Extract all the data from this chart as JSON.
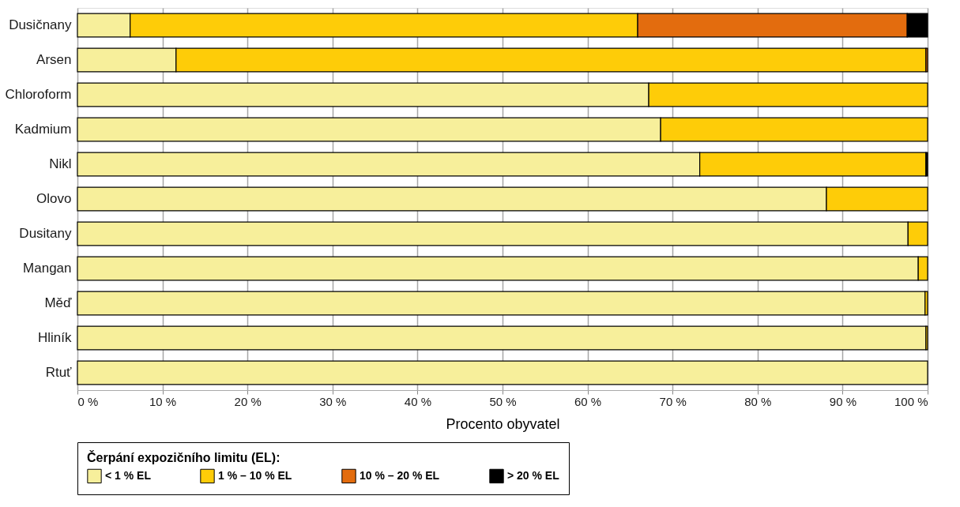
{
  "chart_data": {
    "type": "bar",
    "orientation": "horizontal",
    "stacked": true,
    "categories": [
      "Dusičnany",
      "Arsen",
      "Chloroform",
      "Kadmium",
      "Nikl",
      "Olovo",
      "Dusitany",
      "Mangan",
      "Měď",
      "Hliník",
      "Rtuť"
    ],
    "series": [
      {
        "name": "< 1 % EL",
        "color": "#f7ef9b",
        "values": [
          6.2,
          11.6,
          67.2,
          68.6,
          73.2,
          88.1,
          97.7,
          98.9,
          99.7,
          99.8,
          100
        ]
      },
      {
        "name": "1 % – 10 % EL",
        "color": "#fecc08",
        "values": [
          59.7,
          88.2,
          32.8,
          31.4,
          26.6,
          11.9,
          2.3,
          1.1,
          0.3,
          0.2,
          0
        ]
      },
      {
        "name": "10 % – 20 % EL",
        "color": "#e36c0e",
        "values": [
          31.7,
          0.2,
          0,
          0,
          0,
          0,
          0,
          0,
          0,
          0,
          0
        ]
      },
      {
        "name": "> 20 % EL",
        "color": "#000000",
        "values": [
          2.4,
          0,
          0,
          0,
          0.2,
          0,
          0,
          0,
          0,
          0,
          0
        ]
      }
    ],
    "xlabel": "Procento obyvatel",
    "legend_title": "Čerpání expozičního limitu (EL):",
    "xlim": [
      0,
      100
    ],
    "xticks": [
      {
        "value": 0,
        "label": "0 %"
      },
      {
        "value": 10,
        "label": "10 %"
      },
      {
        "value": 20,
        "label": "20 %"
      },
      {
        "value": 30,
        "label": "30 %"
      },
      {
        "value": 40,
        "label": "40 %"
      },
      {
        "value": 50,
        "label": "50 %"
      },
      {
        "value": 60,
        "label": "60 %"
      },
      {
        "value": 70,
        "label": "70 %"
      },
      {
        "value": 80,
        "label": "80 %"
      },
      {
        "value": 90,
        "label": "90 %"
      },
      {
        "value": 100,
        "label": "100 %"
      }
    ],
    "grid": "x",
    "legend": "bottom"
  }
}
